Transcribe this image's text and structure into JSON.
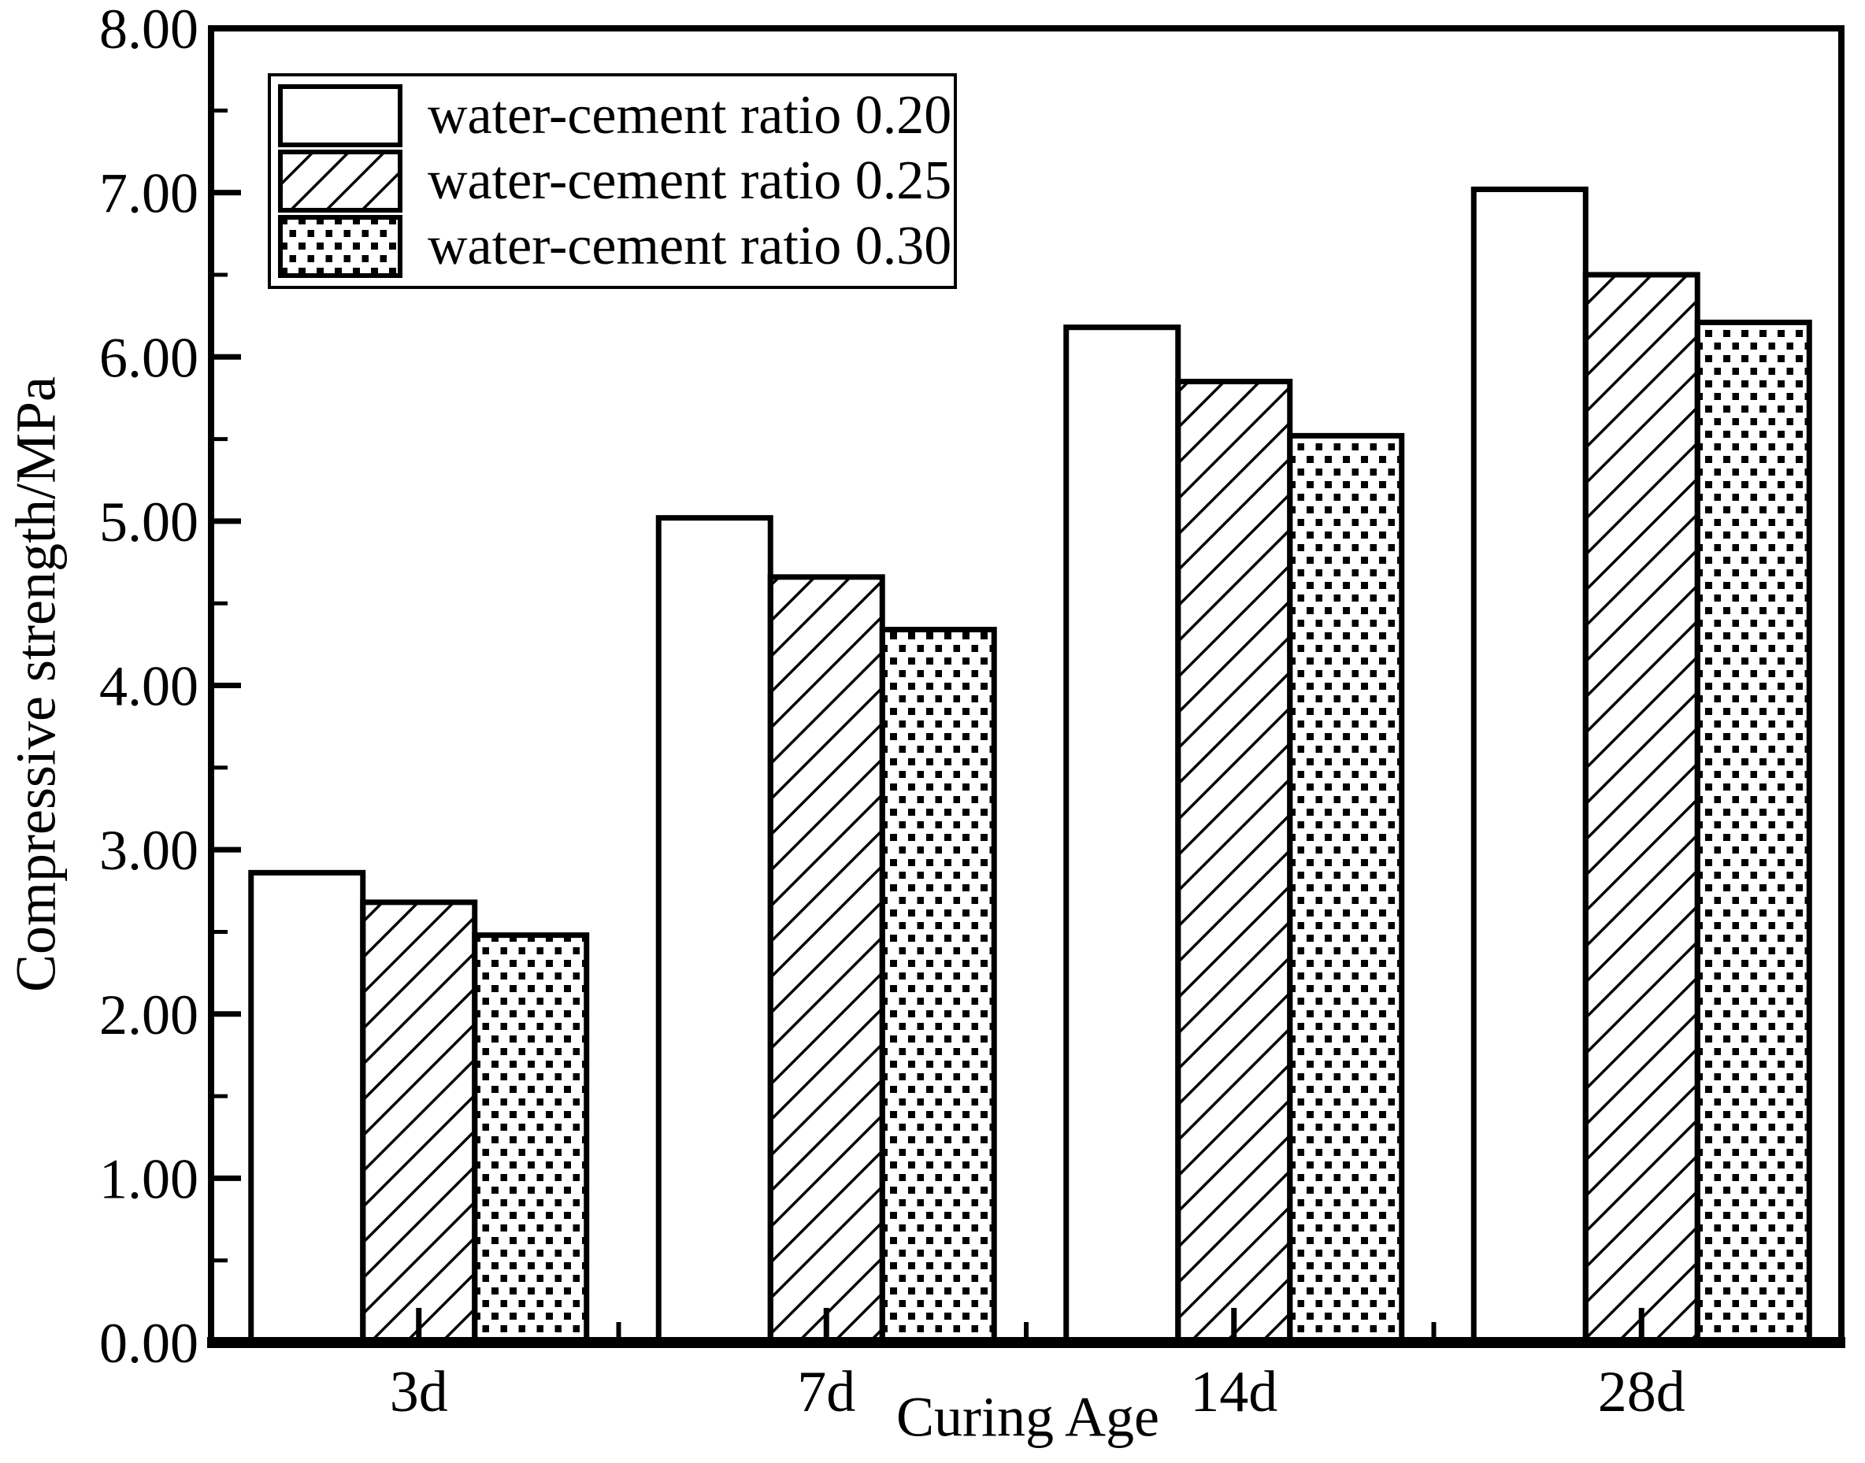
{
  "figure": {
    "background_color": "#ffffff",
    "ink_color": "#000000"
  },
  "chart_data": {
    "type": "bar",
    "title": "",
    "xlabel": "Curing Age",
    "ylabel": "Compressive strength/MPa",
    "categories": [
      "3d",
      "7d",
      "14d",
      "28d"
    ],
    "series": [
      {
        "name": "water-cement ratio 0.20",
        "pattern": "solid-white",
        "values": [
          2.86,
          5.02,
          6.18,
          7.02
        ]
      },
      {
        "name": "water-cement ratio 0.25",
        "pattern": "diagonal-hatch",
        "values": [
          2.68,
          4.66,
          5.85,
          6.5
        ]
      },
      {
        "name": "water-cement ratio 0.30",
        "pattern": "dotted",
        "values": [
          2.48,
          4.34,
          5.52,
          6.21
        ]
      }
    ],
    "ylim": [
      0,
      8
    ],
    "ytick_step": 1.0,
    "ytick_minor_step": 0.5,
    "yticklabels": [
      "0.00",
      "1.00",
      "2.00",
      "3.00",
      "4.00",
      "5.00",
      "6.00",
      "7.00",
      "8.00"
    ],
    "grid": false,
    "legend_position": "upper-left",
    "bar_fill": "#ffffff",
    "bar_edge": "#000000"
  }
}
